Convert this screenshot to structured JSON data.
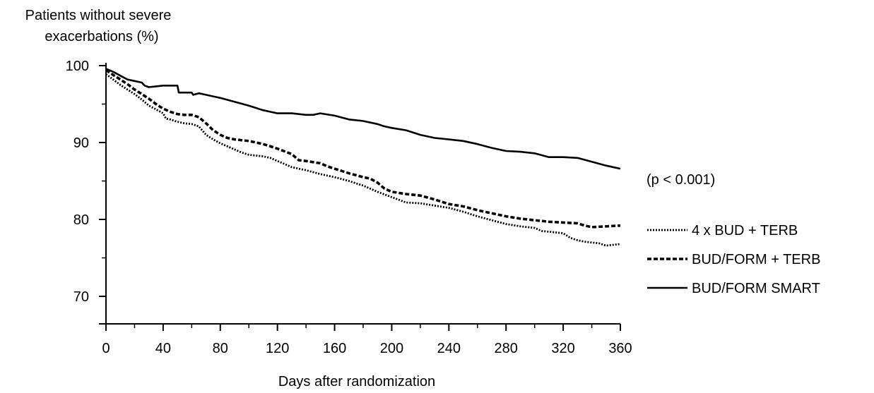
{
  "chart_data": {
    "type": "line",
    "title": "",
    "ylabel_lines": [
      "Patients without severe",
      "exacerbations (%)"
    ],
    "xlabel": "Days after randomization",
    "xlim": [
      0,
      360
    ],
    "ylim": [
      66,
      100
    ],
    "x_ticks": [
      0,
      40,
      80,
      120,
      160,
      200,
      240,
      280,
      320,
      360
    ],
    "y_ticks": [
      70,
      80,
      90,
      100
    ],
    "grid": false,
    "legend_position": "right",
    "annotation": "(p < 0.001)",
    "series": [
      {
        "name": "4 x BUD + TERB",
        "style": "dotted",
        "color": "#000000",
        "points": [
          [
            0,
            98.9
          ],
          [
            5,
            98.2
          ],
          [
            10,
            97.5
          ],
          [
            15,
            96.9
          ],
          [
            20,
            96.3
          ],
          [
            25,
            95.6
          ],
          [
            30,
            94.8
          ],
          [
            35,
            94.3
          ],
          [
            40,
            93.8
          ],
          [
            42,
            93.1
          ],
          [
            45,
            93.0
          ],
          [
            50,
            92.7
          ],
          [
            55,
            92.5
          ],
          [
            60,
            92.4
          ],
          [
            65,
            92.1
          ],
          [
            70,
            91.0
          ],
          [
            75,
            90.4
          ],
          [
            80,
            89.9
          ],
          [
            85,
            89.5
          ],
          [
            90,
            89.1
          ],
          [
            95,
            88.7
          ],
          [
            100,
            88.4
          ],
          [
            110,
            88.2
          ],
          [
            115,
            88.0
          ],
          [
            120,
            87.6
          ],
          [
            125,
            87.2
          ],
          [
            130,
            86.8
          ],
          [
            140,
            86.4
          ],
          [
            150,
            85.9
          ],
          [
            160,
            85.5
          ],
          [
            170,
            85.0
          ],
          [
            180,
            84.4
          ],
          [
            190,
            83.6
          ],
          [
            200,
            82.9
          ],
          [
            210,
            82.2
          ],
          [
            220,
            82.1
          ],
          [
            230,
            81.8
          ],
          [
            240,
            81.5
          ],
          [
            250,
            81.0
          ],
          [
            260,
            80.4
          ],
          [
            270,
            79.9
          ],
          [
            280,
            79.4
          ],
          [
            290,
            79.1
          ],
          [
            300,
            78.9
          ],
          [
            305,
            78.5
          ],
          [
            310,
            78.4
          ],
          [
            320,
            78.2
          ],
          [
            325,
            77.6
          ],
          [
            330,
            77.3
          ],
          [
            335,
            77.1
          ],
          [
            340,
            77.0
          ],
          [
            345,
            76.9
          ],
          [
            350,
            76.6
          ],
          [
            355,
            76.7
          ],
          [
            360,
            76.8
          ]
        ]
      },
      {
        "name": "BUD/FORM + TERB",
        "style": "dashed",
        "color": "#000000",
        "points": [
          [
            0,
            99.4
          ],
          [
            5,
            98.8
          ],
          [
            10,
            98.2
          ],
          [
            15,
            97.6
          ],
          [
            20,
            96.9
          ],
          [
            25,
            96.3
          ],
          [
            30,
            95.7
          ],
          [
            35,
            95.0
          ],
          [
            40,
            94.4
          ],
          [
            45,
            94.0
          ],
          [
            50,
            93.7
          ],
          [
            55,
            93.6
          ],
          [
            60,
            93.6
          ],
          [
            65,
            93.3
          ],
          [
            70,
            92.5
          ],
          [
            75,
            91.6
          ],
          [
            80,
            91.0
          ],
          [
            85,
            90.6
          ],
          [
            90,
            90.4
          ],
          [
            100,
            90.2
          ],
          [
            110,
            89.8
          ],
          [
            115,
            89.5
          ],
          [
            120,
            89.2
          ],
          [
            130,
            88.5
          ],
          [
            135,
            87.7
          ],
          [
            140,
            87.6
          ],
          [
            150,
            87.3
          ],
          [
            155,
            86.9
          ],
          [
            160,
            86.6
          ],
          [
            165,
            86.3
          ],
          [
            170,
            86.0
          ],
          [
            180,
            85.5
          ],
          [
            185,
            85.3
          ],
          [
            190,
            84.8
          ],
          [
            195,
            84.0
          ],
          [
            200,
            83.6
          ],
          [
            210,
            83.3
          ],
          [
            220,
            83.1
          ],
          [
            230,
            82.6
          ],
          [
            240,
            82.0
          ],
          [
            250,
            81.7
          ],
          [
            260,
            81.2
          ],
          [
            270,
            80.8
          ],
          [
            280,
            80.4
          ],
          [
            290,
            80.1
          ],
          [
            300,
            79.9
          ],
          [
            310,
            79.7
          ],
          [
            320,
            79.6
          ],
          [
            330,
            79.5
          ],
          [
            335,
            79.2
          ],
          [
            340,
            79.0
          ],
          [
            350,
            79.1
          ],
          [
            360,
            79.2
          ]
        ]
      },
      {
        "name": "BUD/FORM SMART",
        "style": "solid",
        "color": "#000000",
        "points": [
          [
            0,
            99.6
          ],
          [
            5,
            99.2
          ],
          [
            10,
            98.7
          ],
          [
            15,
            98.2
          ],
          [
            20,
            98.0
          ],
          [
            25,
            97.8
          ],
          [
            27,
            97.4
          ],
          [
            30,
            97.2
          ],
          [
            35,
            97.3
          ],
          [
            40,
            97.4
          ],
          [
            45,
            97.4
          ],
          [
            50,
            97.4
          ],
          [
            51,
            96.5
          ],
          [
            55,
            96.5
          ],
          [
            60,
            96.5
          ],
          [
            61,
            96.2
          ],
          [
            65,
            96.4
          ],
          [
            70,
            96.2
          ],
          [
            75,
            96.0
          ],
          [
            80,
            95.8
          ],
          [
            90,
            95.3
          ],
          [
            100,
            94.8
          ],
          [
            110,
            94.2
          ],
          [
            120,
            93.8
          ],
          [
            130,
            93.8
          ],
          [
            140,
            93.6
          ],
          [
            145,
            93.6
          ],
          [
            150,
            93.8
          ],
          [
            160,
            93.5
          ],
          [
            170,
            93.0
          ],
          [
            180,
            92.8
          ],
          [
            190,
            92.4
          ],
          [
            195,
            92.1
          ],
          [
            200,
            91.9
          ],
          [
            210,
            91.6
          ],
          [
            220,
            91.0
          ],
          [
            230,
            90.6
          ],
          [
            240,
            90.4
          ],
          [
            250,
            90.2
          ],
          [
            260,
            89.8
          ],
          [
            270,
            89.3
          ],
          [
            280,
            88.9
          ],
          [
            290,
            88.8
          ],
          [
            300,
            88.6
          ],
          [
            310,
            88.1
          ],
          [
            320,
            88.1
          ],
          [
            330,
            88.0
          ],
          [
            340,
            87.5
          ],
          [
            350,
            87.0
          ],
          [
            360,
            86.6
          ]
        ]
      }
    ]
  }
}
